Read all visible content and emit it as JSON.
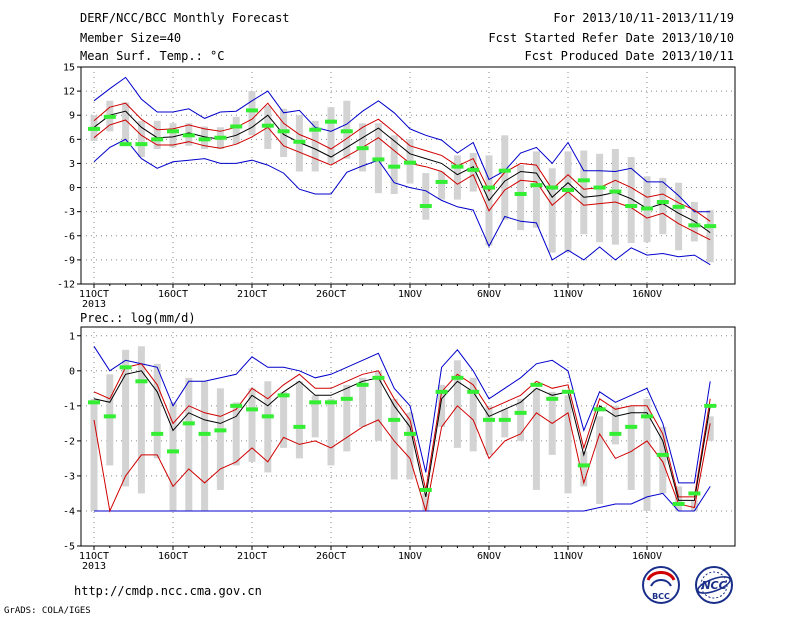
{
  "header": {
    "title": "DERF/NCC/BCC Monthly Forecast",
    "member_size": "Member Size=40",
    "variable_1": "Mean Surf. Temp.: °C",
    "period": "For 2013/10/11-2013/11/19",
    "started": "Fcst Started Refer Date 2013/10/10",
    "produced": "Fcst Produced Date 2013/10/11"
  },
  "footer": {
    "url": "http://cmdp.ncc.cma.gov.cn",
    "credit": "GrADS: COLA/IGES",
    "logo_bcc": "BCC",
    "logo_ncc": "NCC"
  },
  "colors": {
    "mean": "#000000",
    "inner_band": "#d00000",
    "outer_band": "#0000cc",
    "box": "#d3d3d3",
    "marker": "#33ee33",
    "grid": "#888888"
  },
  "chart_data": [
    {
      "type": "line",
      "title": "Mean Surf. Temp.: °C",
      "x_ticks": [
        "11OCT",
        "16OCT",
        "21OCT",
        "26OCT",
        "1NOV",
        "6NOV",
        "11NOV",
        "16NOV"
      ],
      "x_year": "2013",
      "y_ticks": [
        "15",
        "12",
        "9",
        "6",
        "3",
        "0",
        "-3",
        "-6",
        "-9",
        "-12"
      ],
      "ylim": [
        -12,
        15
      ],
      "grid": true,
      "days": 40,
      "series": [
        {
          "role": "mean",
          "values": [
            7.5,
            9.0,
            9.5,
            7.5,
            6.2,
            6.3,
            6.8,
            6.3,
            6.0,
            6.5,
            7.5,
            9.0,
            6.6,
            5.6,
            4.8,
            3.8,
            5.0,
            6.2,
            7.4,
            5.8,
            4.2,
            3.6,
            3.0,
            1.6,
            2.6,
            -1.6,
            0.8,
            2.0,
            1.8,
            -1.2,
            0.6,
            -1.2,
            -1.0,
            -0.6,
            -1.4,
            -2.6,
            -2.0,
            -3.2,
            -4.2,
            -5.6
          ]
        },
        {
          "role": "upper_inner",
          "values": [
            8.3,
            10.0,
            10.5,
            8.5,
            7.2,
            7.3,
            7.8,
            7.3,
            7.0,
            7.5,
            8.5,
            10.5,
            8.0,
            6.6,
            5.8,
            4.8,
            6.1,
            7.5,
            8.5,
            6.9,
            5.2,
            4.6,
            4.0,
            2.7,
            3.6,
            -0.4,
            1.9,
            3.0,
            2.8,
            -0.2,
            1.6,
            -0.2,
            0.0,
            0.9,
            0.0,
            -1.2,
            -0.8,
            -1.9,
            -2.8,
            -4.2
          ]
        },
        {
          "role": "lower_inner",
          "values": [
            6.2,
            7.8,
            8.4,
            6.5,
            5.3,
            5.3,
            5.7,
            5.2,
            4.9,
            5.4,
            6.3,
            7.5,
            5.2,
            4.4,
            3.6,
            2.8,
            3.9,
            5.0,
            6.2,
            4.6,
            3.0,
            2.6,
            2.0,
            0.4,
            1.6,
            -2.9,
            -0.3,
            0.9,
            0.7,
            -2.2,
            -0.5,
            -2.2,
            -2.0,
            -1.8,
            -2.5,
            -3.8,
            -3.2,
            -4.5,
            -5.5,
            -6.5
          ]
        },
        {
          "role": "upper_outer",
          "values": [
            10.8,
            12.3,
            13.7,
            11.0,
            9.4,
            9.4,
            9.8,
            8.6,
            9.4,
            9.5,
            10.8,
            12.0,
            9.3,
            9.6,
            7.5,
            7.0,
            7.9,
            9.5,
            10.8,
            9.3,
            7.3,
            6.5,
            5.9,
            4.3,
            5.6,
            1.0,
            2.1,
            4.3,
            5.0,
            3.0,
            5.6,
            2.1,
            2.1,
            2.0,
            2.4,
            0.7,
            0.7,
            -1.0,
            -3.0,
            -3.0
          ]
        },
        {
          "role": "lower_outer",
          "values": [
            3.2,
            5.0,
            6.0,
            3.6,
            2.4,
            3.2,
            3.4,
            3.6,
            3.0,
            3.0,
            3.4,
            2.8,
            1.8,
            -0.2,
            -0.8,
            -0.8,
            1.9,
            2.7,
            3.4,
            0.6,
            0.0,
            -0.4,
            -1.6,
            -2.4,
            -2.8,
            -7.3,
            -3.6,
            -4.2,
            -4.4,
            -9.0,
            -7.8,
            -9.0,
            -7.4,
            -9.0,
            -7.5,
            -8.4,
            -8.2,
            -8.6,
            -8.4,
            -9.6
          ]
        },
        {
          "role": "marker",
          "values": [
            7.3,
            8.8,
            5.4,
            5.4,
            6.0,
            7.0,
            6.5,
            6.0,
            6.2,
            7.6,
            9.6,
            7.7,
            7.0,
            5.7,
            7.2,
            8.2,
            7.0,
            4.9,
            3.5,
            2.6,
            3.1,
            -2.3,
            0.7,
            2.6,
            2.2,
            0.0,
            2.1,
            -0.8,
            0.3,
            0.0,
            -0.3,
            0.9,
            0.0,
            -0.5,
            -2.3,
            -2.6,
            -1.8,
            -2.4,
            -4.7,
            -4.8
          ]
        },
        {
          "role": "box_high",
          "values": [
            9.0,
            10.8,
            10.6,
            8.3,
            8.3,
            8.0,
            8.0,
            7.6,
            7.5,
            8.8,
            12.0,
            10.2,
            9.8,
            9.0,
            8.3,
            10.0,
            10.8,
            8.0,
            8.0,
            6.5,
            6.0,
            1.8,
            2.0,
            4.0,
            4.3,
            4.0,
            6.5,
            2.8,
            4.5,
            2.4,
            4.5,
            4.6,
            4.2,
            4.8,
            3.8,
            1.4,
            1.2,
            0.6,
            -1.8,
            -2.8
          ]
        },
        {
          "role": "box_low",
          "values": [
            5.8,
            7.0,
            5.2,
            3.8,
            4.8,
            5.0,
            5.2,
            4.8,
            4.8,
            5.4,
            6.5,
            4.8,
            3.8,
            2.0,
            2.0,
            3.0,
            3.6,
            2.0,
            -0.7,
            -0.8,
            0.5,
            -4.0,
            -1.5,
            -1.5,
            -0.5,
            -7.2,
            -4.0,
            -5.3,
            -5.0,
            -8.1,
            -8.0,
            -5.8,
            -6.8,
            -7.1,
            -6.9,
            -6.8,
            -5.8,
            -7.8,
            -6.7,
            -9.3
          ]
        }
      ]
    },
    {
      "type": "line",
      "title": "Prec.: log(mm/d)",
      "x_ticks": [
        "11OCT",
        "16OCT",
        "21OCT",
        "26OCT",
        "1NOV",
        "6NOV",
        "11NOV",
        "16NOV"
      ],
      "x_year": "2013",
      "y_ticks": [
        "1",
        "0",
        "-1",
        "-2",
        "-3",
        "-4",
        "-5"
      ],
      "ylim": [
        -5,
        1.25
      ],
      "grid": true,
      "days": 40,
      "series": [
        {
          "role": "mean",
          "values": [
            -0.8,
            -0.9,
            -0.1,
            0.0,
            -0.6,
            -1.7,
            -1.2,
            -1.4,
            -1.5,
            -1.3,
            -0.7,
            -1.0,
            -0.6,
            -0.3,
            -0.7,
            -0.7,
            -0.5,
            -0.3,
            -0.2,
            -1.0,
            -1.6,
            -3.6,
            -0.8,
            -0.3,
            -0.6,
            -1.3,
            -1.1,
            -0.9,
            -0.5,
            -0.7,
            -0.6,
            -2.4,
            -1.0,
            -1.3,
            -1.2,
            -1.2,
            -2.0,
            -3.7,
            -3.7,
            -1.0
          ]
        },
        {
          "role": "upper_inner",
          "values": [
            -0.6,
            -0.8,
            0.1,
            0.2,
            -0.4,
            -1.5,
            -1.0,
            -1.2,
            -1.3,
            -1.1,
            -0.5,
            -0.8,
            -0.4,
            -0.1,
            -0.5,
            -0.5,
            -0.3,
            -0.1,
            0.0,
            -0.8,
            -1.4,
            -3.4,
            -0.6,
            -0.1,
            -0.4,
            -1.1,
            -0.9,
            -0.7,
            -0.3,
            -0.5,
            -0.4,
            -2.2,
            -0.8,
            -1.1,
            -1.0,
            -1.0,
            -1.8,
            -3.6,
            -3.6,
            -0.8
          ]
        },
        {
          "role": "lower_inner",
          "values": [
            -1.4,
            -4.0,
            -3.0,
            -2.4,
            -2.4,
            -3.3,
            -2.8,
            -3.2,
            -2.8,
            -2.6,
            -2.2,
            -2.6,
            -1.9,
            -2.1,
            -2.0,
            -2.2,
            -1.9,
            -1.6,
            -1.4,
            -2.0,
            -2.5,
            -4.0,
            -1.6,
            -1.0,
            -1.4,
            -2.5,
            -2.0,
            -1.8,
            -1.2,
            -1.5,
            -1.2,
            -3.2,
            -1.8,
            -2.5,
            -2.3,
            -2.0,
            -2.6,
            -3.8,
            -3.9,
            -1.5
          ]
        },
        {
          "role": "upper_outer",
          "values": [
            0.7,
            0.0,
            0.3,
            0.2,
            0.1,
            -1.0,
            -0.3,
            -0.3,
            -0.2,
            -0.1,
            0.4,
            0.1,
            0.1,
            0.0,
            -0.2,
            -0.1,
            0.1,
            0.3,
            0.5,
            -0.5,
            -1.0,
            -2.9,
            0.1,
            0.6,
            0.0,
            -0.8,
            -0.5,
            -0.2,
            0.2,
            0.3,
            0.0,
            -1.7,
            -0.6,
            -0.9,
            -0.7,
            -0.5,
            -1.5,
            -3.2,
            -3.2,
            -0.3
          ]
        },
        {
          "role": "lower_outer",
          "values": [
            -4.0,
            -4.0,
            -4.0,
            -4.0,
            -4.0,
            -4.0,
            -4.0,
            -4.0,
            -4.0,
            -4.0,
            -4.0,
            -4.0,
            -4.0,
            -4.0,
            -4.0,
            -4.0,
            -4.0,
            -4.0,
            -4.0,
            -4.0,
            -4.0,
            -4.0,
            -4.0,
            -4.0,
            -4.0,
            -4.0,
            -4.0,
            -4.0,
            -4.0,
            -4.0,
            -4.0,
            -4.0,
            -3.9,
            -3.8,
            -3.8,
            -3.6,
            -3.5,
            -4.0,
            -4.0,
            -3.3
          ]
        },
        {
          "role": "marker",
          "values": [
            -0.9,
            -1.3,
            0.1,
            -0.3,
            -1.8,
            -2.3,
            -1.5,
            -1.8,
            -1.7,
            -1.0,
            -1.1,
            -1.3,
            -0.7,
            -1.6,
            -0.9,
            -0.9,
            -0.8,
            -0.4,
            -0.2,
            -1.4,
            -1.8,
            -3.4,
            -0.6,
            -0.2,
            -0.6,
            -1.4,
            -1.4,
            -1.2,
            -0.4,
            -0.8,
            -0.6,
            -2.7,
            -1.1,
            -1.8,
            -1.6,
            -1.3,
            -2.4,
            -3.8,
            -3.5,
            -1.0
          ]
        },
        {
          "role": "box_high",
          "values": [
            -0.8,
            -0.1,
            0.6,
            0.7,
            0.2,
            -0.9,
            -0.2,
            -0.3,
            -0.5,
            -0.9,
            -0.5,
            -0.3,
            -0.6,
            -0.3,
            -0.7,
            -0.8,
            -0.4,
            -0.2,
            0.0,
            -0.8,
            -1.2,
            -3.5,
            -0.4,
            0.3,
            -0.2,
            -1.0,
            -1.1,
            -0.8,
            -0.5,
            -0.6,
            -0.7,
            -2.3,
            -1.3,
            -1.0,
            -1.0,
            -0.8,
            -1.6,
            -3.3,
            -3.7,
            -1.3
          ]
        },
        {
          "role": "box_low",
          "values": [
            -4.0,
            -2.7,
            -3.3,
            -3.5,
            -2.5,
            -4.0,
            -4.0,
            -4.0,
            -3.4,
            -2.7,
            -2.6,
            -2.9,
            -2.2,
            -2.5,
            -1.9,
            -2.7,
            -2.3,
            -1.6,
            -2.0,
            -3.1,
            -3.1,
            -4.0,
            -1.6,
            -2.2,
            -2.3,
            -2.4,
            -1.9,
            -2.0,
            -3.4,
            -2.4,
            -3.5,
            -3.3,
            -3.8,
            -2.1,
            -3.4,
            -4.0,
            -3.5,
            -4.0,
            -4.0,
            -2.0
          ]
        }
      ]
    }
  ]
}
